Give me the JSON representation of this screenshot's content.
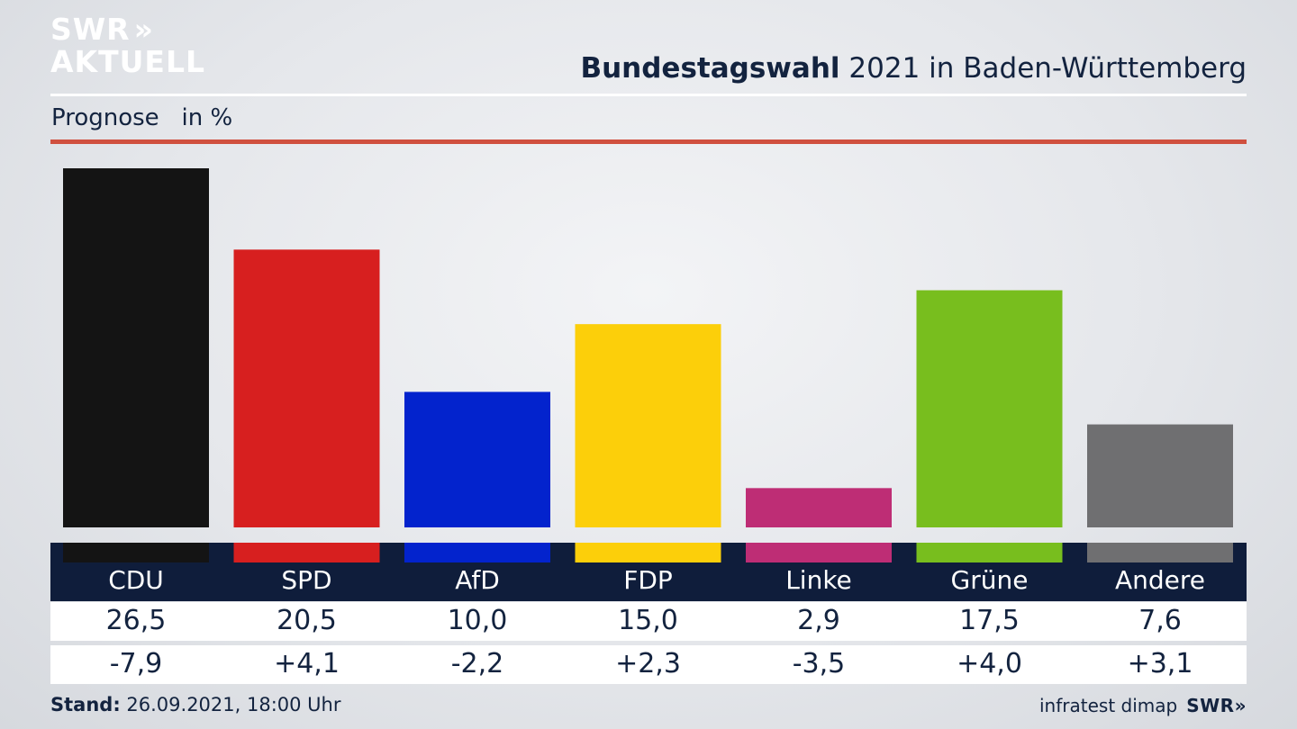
{
  "brand": {
    "logo_line1": "SWR",
    "logo_arrows": "»",
    "logo_line2": "AKTUELL",
    "footer_brand": "SWR»"
  },
  "header": {
    "title_bold": "Bundestagswahl",
    "title_rest": " 2021 in Baden-Württemberg",
    "subtitle": "Prognose   in %"
  },
  "footer": {
    "stand_label": "Stand:",
    "stand_value": " 26.09.2021, 18:00 Uhr",
    "source": "infratest dimap"
  },
  "colors": {
    "accent_red": "#d0503f",
    "navy": "#0f1d3b",
    "text": "#13233f"
  },
  "chart_data": {
    "type": "bar",
    "categories": [
      "CDU",
      "SPD",
      "AfD",
      "FDP",
      "Linke",
      "Grüne",
      "Andere"
    ],
    "values": [
      26.5,
      20.5,
      10.0,
      15.0,
      2.9,
      17.5,
      7.6
    ],
    "labels": [
      "26,5",
      "20,5",
      "10,0",
      "15,0",
      "2,9",
      "17,5",
      "7,6"
    ],
    "changes": [
      "-7,9",
      "+4,1",
      "-2,2",
      "+2,3",
      "-3,5",
      "+4,0",
      "+3,1"
    ],
    "colors": [
      "#141414",
      "#d71f1f",
      "#0323cd",
      "#fccf0a",
      "#be2d75",
      "#78be1e",
      "#6f6f71"
    ],
    "title": "Bundestagswahl 2021 in Baden-Württemberg",
    "ylim": [
      0,
      26.5
    ]
  }
}
